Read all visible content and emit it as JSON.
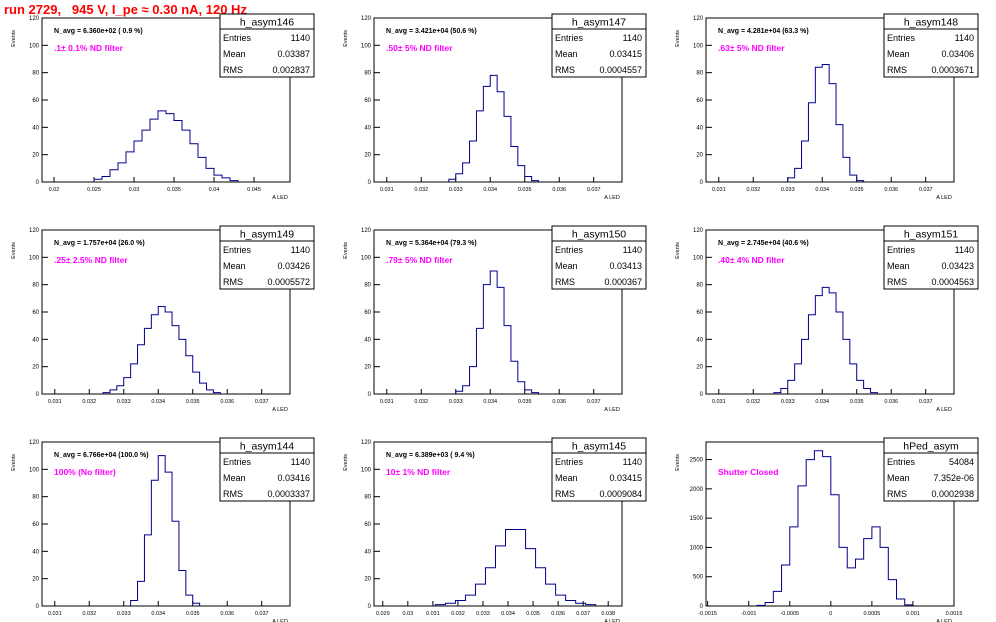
{
  "header": {
    "run_title": "run 2729,   945 V, I_pe ≈ 0.30 nA, 120 Hz"
  },
  "stats_labels": {
    "entries": "Entries",
    "mean": "Mean",
    "rms": "RMS"
  },
  "chart_data": [
    {
      "type": "bar",
      "hist_name": "h_asym146",
      "navg": "N_avg = 6.360e+02 ( 0.9 %)",
      "filter_label": ".1± 0.1% ND filter",
      "entries": "1140",
      "mean": "0.03387",
      "rms": "0.002837",
      "ylabel": "Events",
      "xlabel": "A_LED",
      "xlim": [
        0.0185,
        0.0495
      ],
      "ylim": [
        0,
        120
      ],
      "xticks": [
        0.02,
        0.025,
        0.03,
        0.035,
        0.04,
        0.045
      ],
      "xtick_labels": [
        "0.02",
        "0.025",
        "0.03",
        "0.035",
        "0.04",
        "0.045"
      ],
      "yticks": [
        0,
        20,
        40,
        60,
        80,
        100,
        120
      ],
      "ytick_labels": [
        "0",
        "20",
        "40",
        "60",
        "80",
        "100",
        "120"
      ],
      "centers": [
        0.0255,
        0.0265,
        0.0275,
        0.0285,
        0.0295,
        0.0305,
        0.0315,
        0.0325,
        0.0335,
        0.0345,
        0.0355,
        0.0365,
        0.0375,
        0.0385,
        0.0395,
        0.0405,
        0.0415,
        0.0425
      ],
      "values": [
        2,
        4,
        9,
        14,
        22,
        30,
        38,
        46,
        52,
        50,
        45,
        38,
        28,
        18,
        10,
        5,
        3,
        1
      ]
    },
    {
      "type": "bar",
      "hist_name": "h_asym147",
      "navg": "N_avg = 3.421e+04 (50.6 %)",
      "filter_label": ".50± 5% ND filter",
      "entries": "1140",
      "mean": "0.03415",
      "rms": "0.0004557",
      "ylabel": "Events",
      "xlabel": "A_LED",
      "xlim": [
        0.03063,
        0.03782
      ],
      "ylim": [
        0,
        120
      ],
      "xticks": [
        0.031,
        0.032,
        0.033,
        0.034,
        0.035,
        0.036,
        0.037
      ],
      "xtick_labels": [
        "0.031",
        "0.032",
        "0.033",
        "0.034",
        "0.035",
        "0.036",
        "0.037"
      ],
      "yticks": [
        0,
        20,
        40,
        60,
        80,
        100,
        120
      ],
      "ytick_labels": [
        "0",
        "20",
        "40",
        "60",
        "80",
        "100",
        "120"
      ],
      "centers": [
        0.0329,
        0.0331,
        0.0333,
        0.0335,
        0.0337,
        0.0339,
        0.0341,
        0.0343,
        0.0345,
        0.0347,
        0.0349,
        0.0351,
        0.0353
      ],
      "values": [
        2,
        6,
        14,
        30,
        52,
        70,
        78,
        66,
        48,
        26,
        12,
        4,
        1
      ]
    },
    {
      "type": "bar",
      "hist_name": "h_asym148",
      "navg": "N_avg = 4.281e+04 (63.3 %)",
      "filter_label": ".63± 5% ND filter",
      "entries": "1140",
      "mean": "0.03406",
      "rms": "0.0003671",
      "ylabel": "Events",
      "xlabel": "A_LED",
      "xlim": [
        0.03063,
        0.03782
      ],
      "ylim": [
        0,
        120
      ],
      "xticks": [
        0.031,
        0.032,
        0.033,
        0.034,
        0.035,
        0.036,
        0.037
      ],
      "xtick_labels": [
        "0.031",
        "0.032",
        "0.033",
        "0.034",
        "0.035",
        "0.036",
        "0.037"
      ],
      "yticks": [
        0,
        20,
        40,
        60,
        80,
        100,
        120
      ],
      "ytick_labels": [
        "0",
        "20",
        "40",
        "60",
        "80",
        "100",
        "120"
      ],
      "centers": [
        0.0331,
        0.0333,
        0.0335,
        0.0337,
        0.0339,
        0.0341,
        0.0343,
        0.0345,
        0.0347,
        0.0349,
        0.0351
      ],
      "values": [
        3,
        10,
        30,
        58,
        84,
        86,
        72,
        42,
        18,
        5,
        1
      ]
    },
    {
      "type": "bar",
      "hist_name": "h_asym149",
      "navg": "N_avg = 1.757e+04 (26.0 %)",
      "filter_label": ".25± 2.5% ND filter",
      "entries": "1140",
      "mean": "0.03426",
      "rms": "0.0005572",
      "ylabel": "Events",
      "xlabel": "A_LED",
      "xlim": [
        0.03063,
        0.03782
      ],
      "ylim": [
        0,
        120
      ],
      "xticks": [
        0.031,
        0.032,
        0.033,
        0.034,
        0.035,
        0.036,
        0.037
      ],
      "xtick_labels": [
        "0.031",
        "0.032",
        "0.033",
        "0.034",
        "0.035",
        "0.036",
        "0.037"
      ],
      "yticks": [
        0,
        20,
        40,
        60,
        80,
        100,
        120
      ],
      "ytick_labels": [
        "0",
        "20",
        "40",
        "60",
        "80",
        "100",
        "120"
      ],
      "centers": [
        0.0325,
        0.0327,
        0.0329,
        0.0331,
        0.0333,
        0.0335,
        0.0337,
        0.0339,
        0.0341,
        0.0343,
        0.0345,
        0.0347,
        0.0349,
        0.0351,
        0.0353,
        0.0355,
        0.0357
      ],
      "values": [
        1,
        3,
        6,
        12,
        22,
        36,
        48,
        58,
        64,
        60,
        50,
        40,
        28,
        16,
        8,
        3,
        1
      ]
    },
    {
      "type": "bar",
      "hist_name": "h_asym150",
      "navg": "N_avg = 5.364e+04 (79.3 %)",
      "filter_label": ".79± 5% ND filter",
      "entries": "1140",
      "mean": "0.03413",
      "rms": "0.000367",
      "ylabel": "Events",
      "xlabel": "A_LED",
      "xlim": [
        0.03063,
        0.03782
      ],
      "ylim": [
        0,
        120
      ],
      "xticks": [
        0.031,
        0.032,
        0.033,
        0.034,
        0.035,
        0.036,
        0.037
      ],
      "xtick_labels": [
        "0.031",
        "0.032",
        "0.033",
        "0.034",
        "0.035",
        "0.036",
        "0.037"
      ],
      "yticks": [
        0,
        20,
        40,
        60,
        80,
        100,
        120
      ],
      "ytick_labels": [
        "0",
        "20",
        "40",
        "60",
        "80",
        "100",
        "120"
      ],
      "centers": [
        0.0331,
        0.0333,
        0.0335,
        0.0337,
        0.0339,
        0.0341,
        0.0343,
        0.0345,
        0.0347,
        0.0349,
        0.0351,
        0.0353
      ],
      "values": [
        2,
        6,
        20,
        48,
        80,
        90,
        78,
        50,
        24,
        9,
        3,
        1
      ]
    },
    {
      "type": "bar",
      "hist_name": "h_asym151",
      "navg": "N_avg = 2.745e+04 (40.6 %)",
      "filter_label": ".40± 4% ND filter",
      "entries": "1140",
      "mean": "0.03423",
      "rms": "0.0004563",
      "ylabel": "Events",
      "xlabel": "A_LED",
      "xlim": [
        0.03063,
        0.03782
      ],
      "ylim": [
        0,
        120
      ],
      "xticks": [
        0.031,
        0.032,
        0.033,
        0.034,
        0.035,
        0.036,
        0.037
      ],
      "xtick_labels": [
        "0.031",
        "0.032",
        "0.033",
        "0.034",
        "0.035",
        "0.036",
        "0.037"
      ],
      "yticks": [
        0,
        20,
        40,
        60,
        80,
        100,
        120
      ],
      "ytick_labels": [
        "0",
        "20",
        "40",
        "60",
        "80",
        "100",
        "120"
      ],
      "centers": [
        0.0327,
        0.0329,
        0.0331,
        0.0333,
        0.0335,
        0.0337,
        0.0339,
        0.0341,
        0.0343,
        0.0345,
        0.0347,
        0.0349,
        0.0351,
        0.0353,
        0.0355
      ],
      "values": [
        1,
        4,
        10,
        22,
        40,
        58,
        72,
        78,
        74,
        60,
        40,
        22,
        10,
        4,
        1
      ]
    },
    {
      "type": "bar",
      "hist_name": "h_asym144",
      "navg": "N_avg = 6.766e+04 (100.0 %)",
      "filter_label": "100% (No filter)",
      "entries": "1140",
      "mean": "0.03416",
      "rms": "0.0003337",
      "ylabel": "Events",
      "xlabel": "A_LED",
      "xlim": [
        0.03063,
        0.03782
      ],
      "ylim": [
        0,
        120
      ],
      "xticks": [
        0.031,
        0.032,
        0.033,
        0.034,
        0.035,
        0.036,
        0.037
      ],
      "xtick_labels": [
        "0.031",
        "0.032",
        "0.033",
        "0.034",
        "0.035",
        "0.036",
        "0.037"
      ],
      "yticks": [
        0,
        20,
        40,
        60,
        80,
        100,
        120
      ],
      "ytick_labels": [
        "0",
        "20",
        "40",
        "60",
        "80",
        "100",
        "120"
      ],
      "centers": [
        0.0333,
        0.0335,
        0.0337,
        0.0339,
        0.0341,
        0.0343,
        0.0345,
        0.0347,
        0.0349,
        0.0351
      ],
      "values": [
        4,
        18,
        52,
        92,
        110,
        98,
        62,
        26,
        8,
        2
      ]
    },
    {
      "type": "bar",
      "hist_name": "h_asym145",
      "navg": "N_avg = 6.389e+03 ( 9.4 %)",
      "filter_label": "10± 1% ND filter",
      "entries": "1140",
      "mean": "0.03415",
      "rms": "0.0009084",
      "ylabel": "Events",
      "xlabel": "A_LED",
      "xlim": [
        0.02865,
        0.03855
      ],
      "ylim": [
        0,
        120
      ],
      "xticks": [
        0.029,
        0.03,
        0.031,
        0.032,
        0.033,
        0.034,
        0.035,
        0.036,
        0.037,
        0.038
      ],
      "xtick_labels": [
        "0.029",
        "0.03",
        "0.031",
        "0.032",
        "0.033",
        "0.034",
        "0.035",
        "0.036",
        "0.037",
        "0.038"
      ],
      "yticks": [
        0,
        20,
        40,
        60,
        80,
        100,
        120
      ],
      "ytick_labels": [
        "0",
        "20",
        "40",
        "60",
        "80",
        "100",
        "120"
      ],
      "centers": [
        0.0313,
        0.0317,
        0.0321,
        0.0325,
        0.0329,
        0.0333,
        0.0337,
        0.0341,
        0.0345,
        0.0349,
        0.0353,
        0.0357,
        0.0361,
        0.0365,
        0.0369,
        0.0373
      ],
      "values": [
        1,
        2,
        4,
        8,
        16,
        28,
        44,
        56,
        56,
        42,
        28,
        16,
        8,
        4,
        2,
        1
      ]
    },
    {
      "type": "bar",
      "hist_name": "hPed_asym",
      "navg": "",
      "filter_label": "Shutter Closed",
      "entries": "54084",
      "mean": "7.352e-06",
      "rms": "0.0002938",
      "ylabel": "Events",
      "xlabel": "A_LED",
      "xlim": [
        -0.00152,
        0.0015
      ],
      "ylim": [
        0,
        2800
      ],
      "xticks": [
        -0.0015,
        -0.001,
        -0.0005,
        0,
        0.0005,
        0.001,
        0.0015
      ],
      "xtick_labels": [
        "-0.0015",
        "-0.001",
        "-0.0005",
        "0",
        "0.0005",
        "0.001",
        "0.0015"
      ],
      "yticks": [
        0,
        500,
        1000,
        1500,
        2000,
        2500
      ],
      "ytick_labels": [
        "0",
        "500",
        "1000",
        "1500",
        "2000",
        "2500"
      ],
      "centers": [
        -0.00085,
        -0.00075,
        -0.00065,
        -0.00055,
        -0.00045,
        -0.00035,
        -0.00025,
        -0.00015,
        -5e-05,
        5e-05,
        0.00015,
        0.00025,
        0.00035,
        0.00045,
        0.00055,
        0.00065,
        0.00075,
        0.00085,
        0.00095
      ],
      "values": [
        10,
        60,
        250,
        700,
        1350,
        2050,
        2500,
        2650,
        2550,
        1900,
        1000,
        650,
        800,
        1150,
        1350,
        1000,
        450,
        120,
        20
      ]
    }
  ]
}
